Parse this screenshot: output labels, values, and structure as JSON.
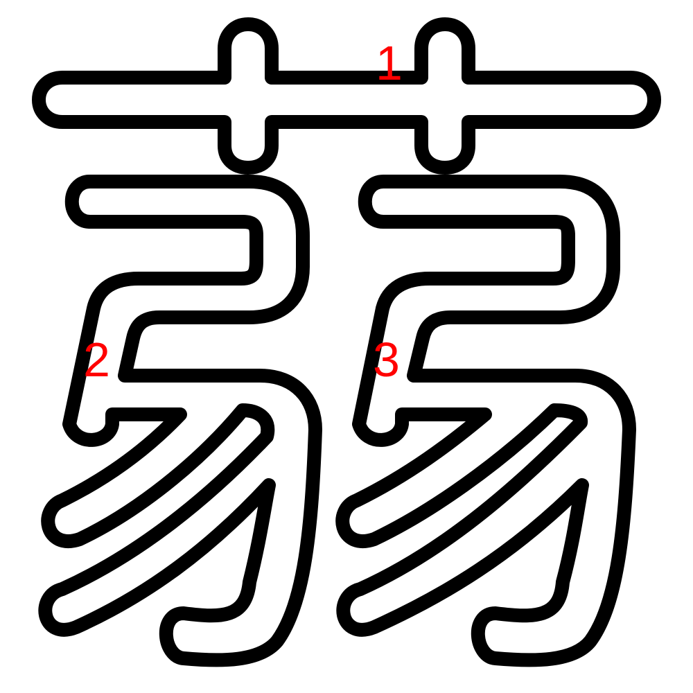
{
  "diagram": {
    "type": "character-stroke-order",
    "background_color": "#ffffff",
    "outline_color": "#000000",
    "label_color": "#ff0000",
    "strokes": [
      {
        "id": "stroke-1",
        "number": "1",
        "component": "grass-radical"
      },
      {
        "id": "stroke-2",
        "number": "2",
        "component": "left-bow"
      },
      {
        "id": "stroke-3",
        "number": "3",
        "component": "right-bow"
      }
    ]
  }
}
